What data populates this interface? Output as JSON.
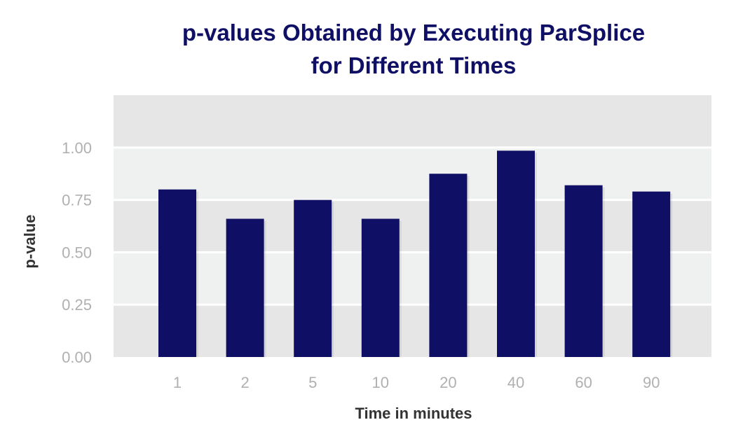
{
  "chart_data": {
    "type": "bar",
    "title": "p-values Obtained by Executing ParSplice for Different Times",
    "title_lines": [
      "p-values Obtained by Executing ParSplice",
      "for Different Times"
    ],
    "xlabel": "Time in minutes",
    "ylabel": "p-value",
    "categories": [
      "1",
      "2",
      "5",
      "10",
      "20",
      "40",
      "60",
      "90"
    ],
    "values": [
      0.8,
      0.66,
      0.75,
      0.66,
      0.875,
      0.985,
      0.82,
      0.79
    ],
    "y_ticks": [
      "0.00",
      "0.25",
      "0.50",
      "0.75",
      "1.00"
    ],
    "ylim": [
      0,
      1.25
    ],
    "grid": true,
    "legend": "none",
    "colors": {
      "bar": "#0f0f66",
      "band_dark": "#e6e6e6",
      "band_light": "#eff0f0",
      "title": "#0f0f66",
      "tick": "#b0b0b0",
      "axis_title": "#333333"
    }
  }
}
